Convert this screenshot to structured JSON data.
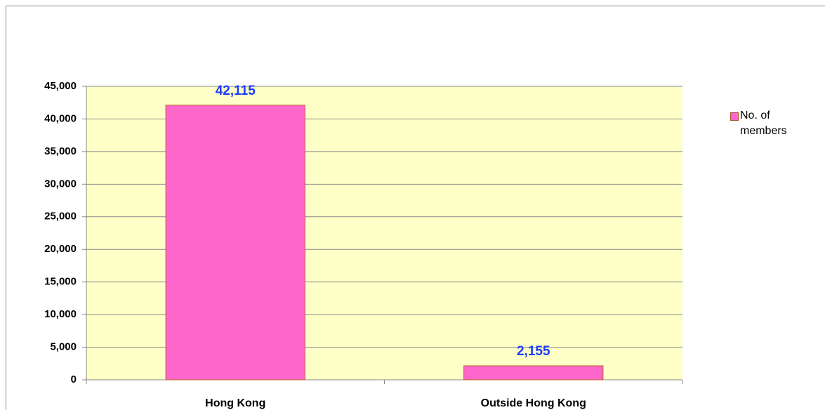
{
  "chart_data": {
    "type": "bar",
    "categories": [
      "Hong Kong",
      "Outside Hong Kong"
    ],
    "series": [
      {
        "name": "No. of members",
        "color": "#ff66cc",
        "values": [
          42115,
          2155
        ],
        "value_labels": [
          "42,115",
          "2,155"
        ]
      }
    ],
    "ylim": [
      0,
      45000
    ],
    "yticks": [
      0,
      {
        "value": 5000,
        "label": "5,000"
      },
      {
        "value": 10000,
        "label": "10,000"
      },
      {
        "value": 15000,
        "label": "15,000"
      },
      {
        "value": 20000,
        "label": "20,000"
      },
      {
        "value": 25000,
        "label": "25,000"
      },
      {
        "value": 30000,
        "label": "30,000"
      },
      {
        "value": 35000,
        "label": "35,000"
      },
      {
        "value": 40000,
        "label": "40,000"
      },
      {
        "value": 45000,
        "label": "45,000"
      }
    ],
    "grid": true,
    "legend": "right"
  }
}
